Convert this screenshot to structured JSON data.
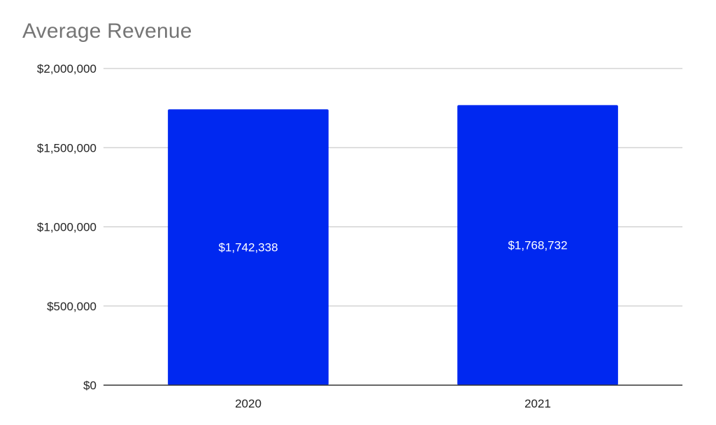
{
  "chart_data": {
    "type": "bar",
    "title": "Average Revenue",
    "xlabel": "",
    "ylabel": "",
    "categories": [
      "2020",
      "2021"
    ],
    "values": [
      1742338,
      1768732
    ],
    "data_labels": [
      "$1,742,338",
      "$1,768,732"
    ],
    "ylim": [
      0,
      2000000
    ],
    "y_ticks": [
      0,
      500000,
      1000000,
      1500000,
      2000000
    ],
    "y_tick_labels": [
      "$0",
      "$500,000",
      "$1,000,000",
      "$1,500,000",
      "$2,000,000"
    ],
    "grid": true,
    "legend": "none",
    "colors": {
      "bar": "#0028f0",
      "grid": "#cccccc",
      "axis": "#333333",
      "tick_text": "#222222",
      "data_label": "#ffffff",
      "title": "#757575"
    }
  }
}
